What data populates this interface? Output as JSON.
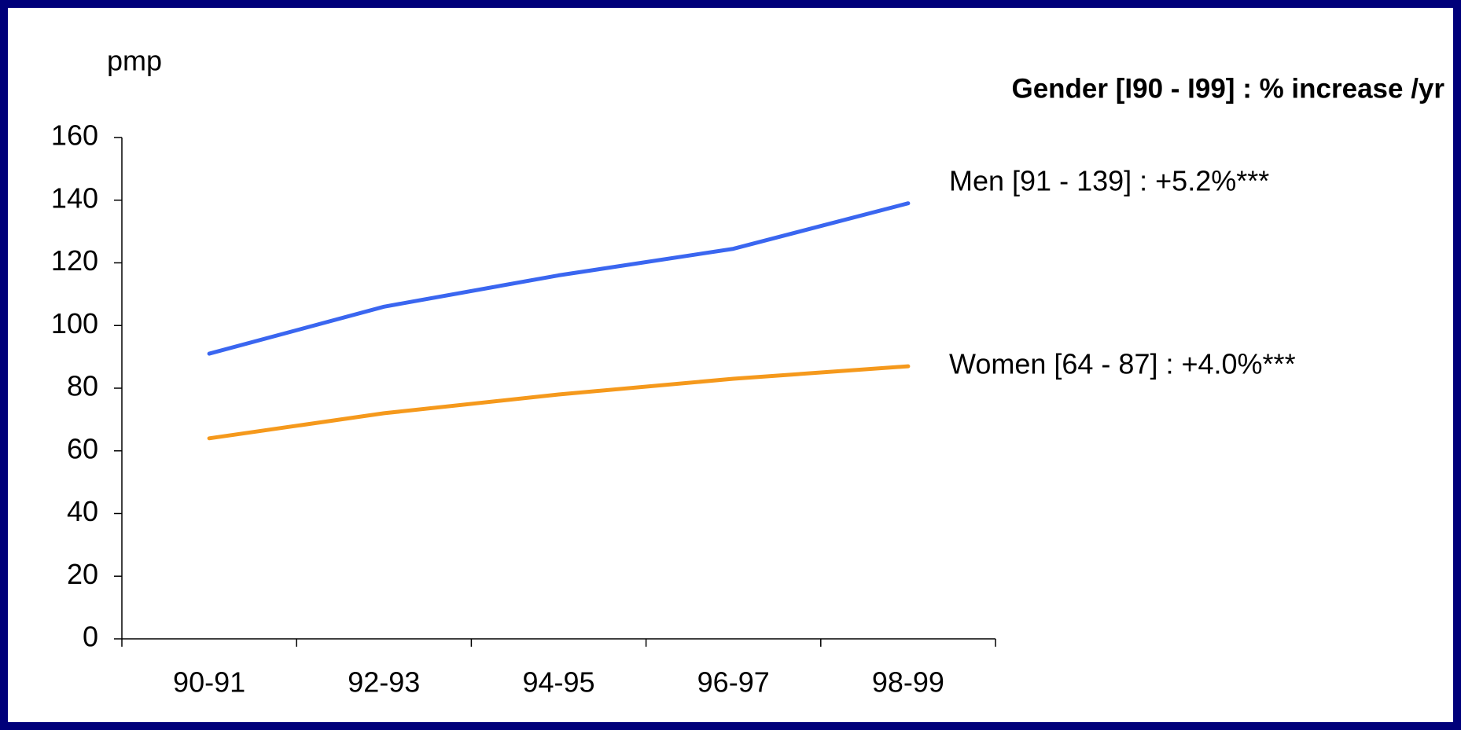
{
  "chart_data": {
    "type": "line",
    "title": "Gender [I90 - I99] : % increase /yr",
    "y_label": "pmp",
    "categories": [
      "90-91",
      "92-93",
      "94-95",
      "96-97",
      "98-99"
    ],
    "series": [
      {
        "name": "Men [91 - 139] : +5.2%***",
        "color": "#3a66f0",
        "values": [
          91,
          106,
          116,
          124.5,
          139
        ]
      },
      {
        "name": "Women [64 - 87] : +4.0%***",
        "color": "#f5991c",
        "values": [
          64,
          72,
          78,
          83,
          87
        ]
      }
    ],
    "ylim": [
      0,
      160
    ],
    "yticks": [
      0,
      20,
      40,
      60,
      80,
      100,
      120,
      140,
      160
    ],
    "grid": false
  }
}
